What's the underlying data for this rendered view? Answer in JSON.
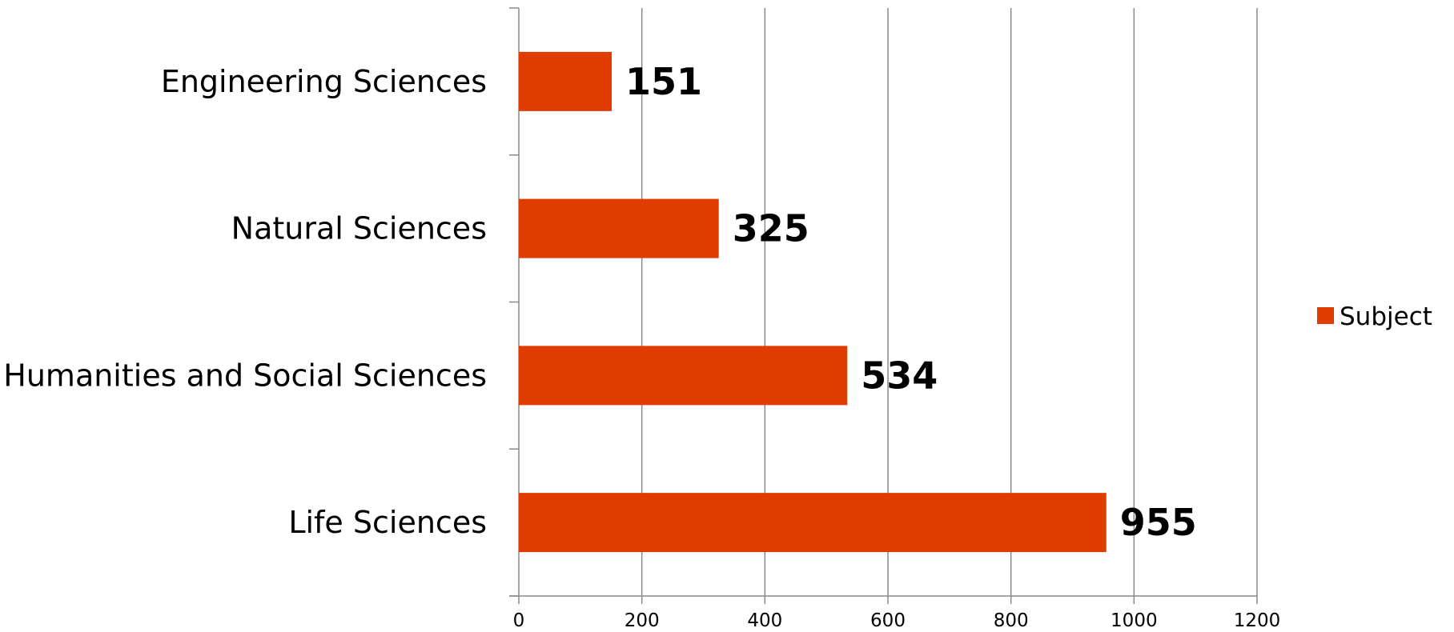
{
  "chart_data": {
    "type": "bar",
    "orientation": "horizontal",
    "categories": [
      "Engineering Sciences",
      "Natural Sciences",
      "Humanities and Social Sciences",
      "Life Sciences"
    ],
    "series": [
      {
        "name": "Subject",
        "values": [
          151,
          325,
          534,
          955
        ],
        "color": "#E03C00"
      }
    ],
    "xlim": [
      0,
      1200
    ],
    "x_ticks": [
      0,
      200,
      400,
      600,
      800,
      1000,
      1200
    ],
    "x_tick_labels": [
      "0",
      "200",
      "400",
      "600",
      "800",
      "1000",
      "1200"
    ],
    "data_labels": [
      "151",
      "325",
      "534",
      "955"
    ],
    "grid": true,
    "legend_position": "right",
    "title": "",
    "xlabel": "",
    "ylabel": ""
  }
}
